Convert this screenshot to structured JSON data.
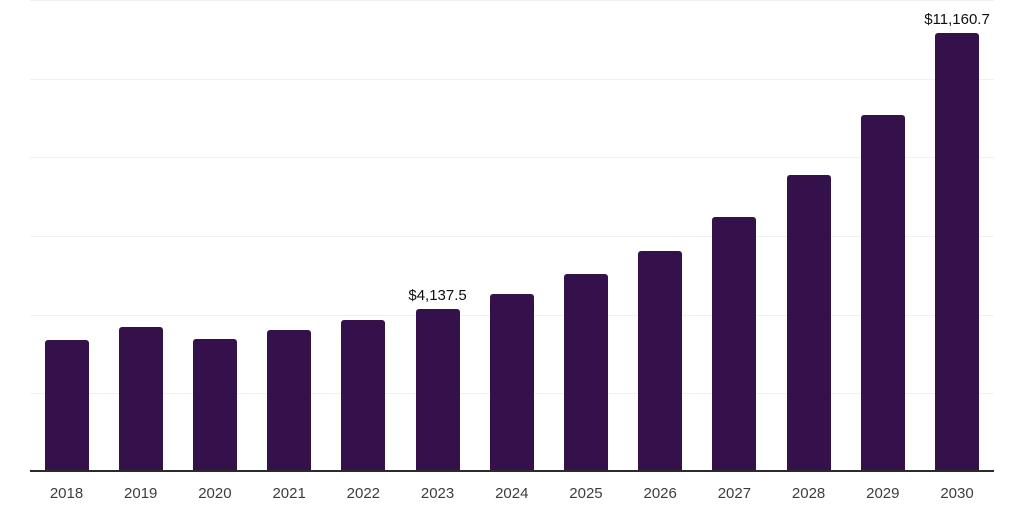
{
  "chart_data": {
    "type": "bar",
    "title": "",
    "xlabel": "",
    "ylabel": "",
    "categories": [
      "2018",
      "2019",
      "2020",
      "2021",
      "2022",
      "2023",
      "2024",
      "2025",
      "2026",
      "2027",
      "2028",
      "2029",
      "2030"
    ],
    "values": [
      3360,
      3680,
      3370,
      3600,
      3860,
      4137.5,
      4520,
      5030,
      5620,
      6480,
      7550,
      9080,
      11160.7
    ],
    "data_labels": {
      "2023": "$4,137.5",
      "2030": "$11,160.7"
    },
    "ylim": [
      0,
      12000
    ],
    "gridline_interval": 2000,
    "grid": true,
    "legend": "none",
    "colors": {
      "bar": "#35114B",
      "axis_line": "#2b2b2b",
      "gridline": "#f0f0f0",
      "tick_label": "#3d3d3d",
      "data_label": "#0f0f0f",
      "background": "#ffffff"
    }
  }
}
